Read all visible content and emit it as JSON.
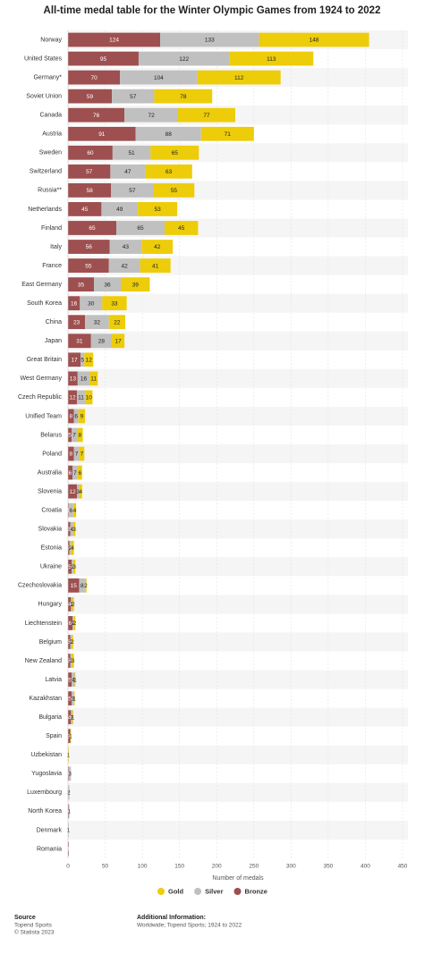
{
  "chart_data": {
    "type": "stacked_bar_horizontal",
    "title": "All-time medal table for the Winter Olympic Games from 1924 to 2022",
    "x_axis_label": "Number of medals",
    "categories": [
      "Norway",
      "United States",
      "Germany*",
      "Soviet Union",
      "Canada",
      "Austria",
      "Sweden",
      "Switzerland",
      "Russia**",
      "Netherlands",
      "Finland",
      "Italy",
      "France",
      "East Germany",
      "South Korea",
      "China",
      "Japan",
      "Great Britain",
      "West Germany",
      "Czech Republic",
      "Unified Team",
      "Belarus",
      "Poland",
      "Australia",
      "Slovenia",
      "Croatia",
      "Slovakia",
      "Estonia",
      "Ukraine",
      "Czechoslovakia",
      "Hungary",
      "Liechtenstein",
      "Belgium",
      "New Zealand",
      "Latvia",
      "Kazakhstan",
      "Bulgaria",
      "Spain",
      "Uzbekistan",
      "Yugoslavia",
      "Luxembourg",
      "North Korea",
      "Denmark",
      "Romania"
    ],
    "series": [
      {
        "name": "Bronze",
        "color": "#9e4f4f",
        "values": [
          124,
          95,
          70,
          59,
          76,
          91,
          60,
          57,
          58,
          45,
          65,
          56,
          55,
          35,
          16,
          23,
          31,
          17,
          13,
          12,
          8,
          5,
          8,
          6,
          12,
          1,
          3,
          2,
          5,
          15,
          4,
          6,
          3,
          3,
          5,
          5,
          4,
          3,
          0,
          1,
          0,
          1,
          0,
          1
        ]
      },
      {
        "name": "Silver",
        "color": "#c0c0c0",
        "values": [
          133,
          122,
          104,
          57,
          72,
          88,
          51,
          47,
          57,
          49,
          65,
          43,
          42,
          36,
          30,
          32,
          28,
          5,
          16,
          11,
          6,
          7,
          7,
          7,
          3,
          6,
          4,
          2,
          2,
          8,
          2,
          2,
          2,
          2,
          4,
          3,
          2,
          0,
          0,
          3,
          2,
          1,
          1,
          0
        ]
      },
      {
        "name": "Gold",
        "color": "#edcc0a",
        "values": [
          148,
          113,
          112,
          78,
          77,
          71,
          65,
          63,
          55,
          53,
          45,
          42,
          41,
          39,
          33,
          22,
          17,
          12,
          11,
          10,
          9,
          8,
          7,
          6,
          4,
          4,
          3,
          4,
          3,
          2,
          2,
          2,
          2,
          3,
          1,
          1,
          1,
          1,
          1,
          0,
          0,
          0,
          0,
          0
        ]
      }
    ],
    "xlim": [
      0,
      450
    ],
    "xticks": [
      0,
      50,
      100,
      150,
      200,
      250,
      300,
      350,
      400,
      450
    ],
    "grid": true,
    "source_label": "Source",
    "source": "Topend Sports",
    "copyright": "© Statista 2023",
    "info_label": "Additional Information:",
    "info": "Worldwide; Topend Sports; 1924 to 2022"
  }
}
